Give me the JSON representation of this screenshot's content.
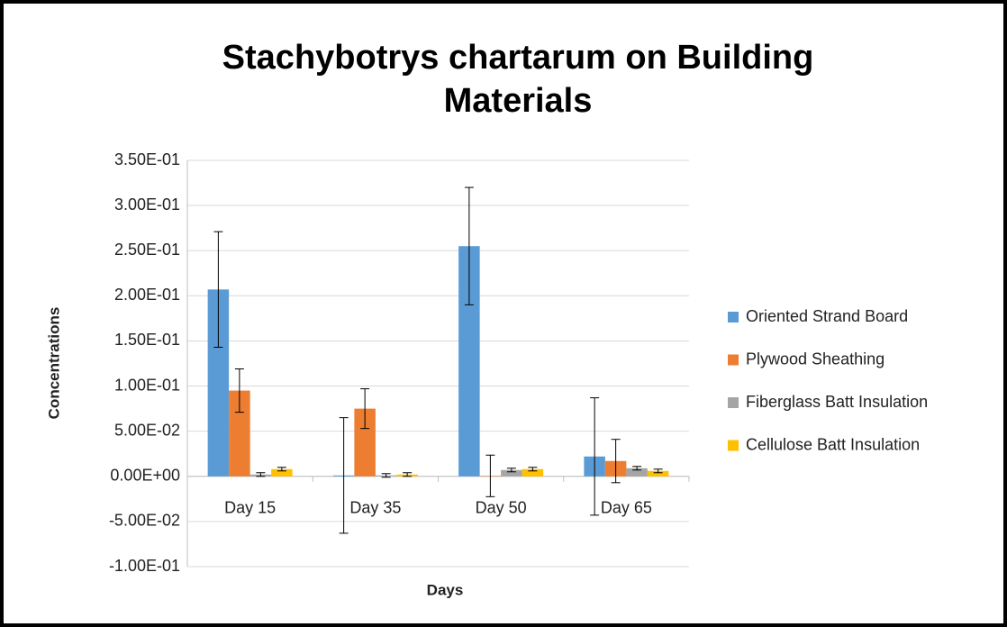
{
  "chart_data": {
    "type": "bar",
    "title": "Stachybotrys chartarum on Building Materials",
    "xlabel": "Days",
    "ylabel": "Concentrations",
    "categories": [
      "Day 15",
      "Day 35",
      "Day 50",
      "Day 65"
    ],
    "series": [
      {
        "name": "Oriented Strand Board",
        "color": "#5b9bd5",
        "values": [
          0.207,
          0.001,
          0.255,
          0.022
        ],
        "errors": [
          0.064,
          0.064,
          0.065,
          0.065
        ]
      },
      {
        "name": "Plywood Sheathing",
        "color": "#ed7d31",
        "values": [
          0.095,
          0.075,
          0.0005,
          0.017
        ],
        "errors": [
          0.024,
          0.022,
          0.023,
          0.024
        ]
      },
      {
        "name": "Fiberglass Batt Insulation",
        "color": "#a5a5a5",
        "values": [
          0.002,
          0.001,
          0.007,
          0.009
        ],
        "errors": [
          0.002,
          0.002,
          0.002,
          0.002
        ]
      },
      {
        "name": "Cellulose Batt Insulation",
        "color": "#ffc000",
        "values": [
          0.008,
          0.002,
          0.008,
          0.006
        ],
        "errors": [
          0.002,
          0.002,
          0.002,
          0.002
        ]
      }
    ],
    "ylim": [
      -0.1,
      0.35
    ],
    "yticks": [
      {
        "value": -0.1,
        "label": "-1.00E-01"
      },
      {
        "value": -0.05,
        "label": "-5.00E-02"
      },
      {
        "value": 0,
        "label": "0.00E+00"
      },
      {
        "value": 0.05,
        "label": "5.00E-02"
      },
      {
        "value": 0.1,
        "label": "1.00E-01"
      },
      {
        "value": 0.15,
        "label": "1.50E-01"
      },
      {
        "value": 0.2,
        "label": "2.00E-01"
      },
      {
        "value": 0.25,
        "label": "2.50E-01"
      },
      {
        "value": 0.3,
        "label": "3.00E-01"
      },
      {
        "value": 0.35,
        "label": "3.50E-01"
      }
    ],
    "grid": true,
    "legend": "right"
  }
}
